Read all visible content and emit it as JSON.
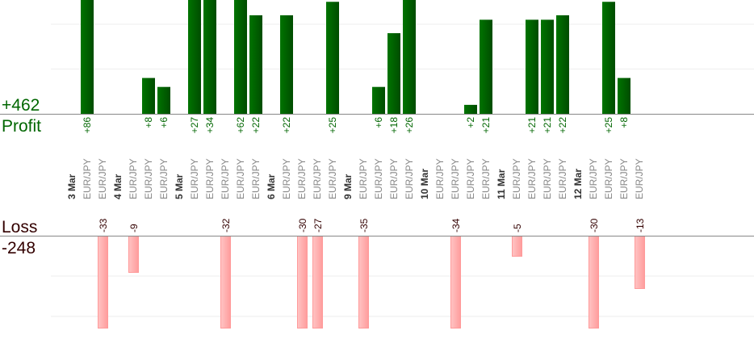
{
  "chart_data": {
    "type": "bar",
    "title": "",
    "profit_total_label": "+462",
    "profit_label": "Profit",
    "loss_label": "Loss",
    "loss_total_label": "-248",
    "colors": {
      "profit": "#006600",
      "profit_bar": "#006a00",
      "loss_text": "#330000",
      "loss_bar": "#ffb0b0",
      "instrument": "#888888",
      "date": "#333333"
    },
    "groups": [
      {
        "date": "3 Mar",
        "trades": [
          {
            "instrument": "EUR/JPY",
            "value": 86
          },
          {
            "instrument": "EUR/JPY",
            "value": -33
          }
        ]
      },
      {
        "date": "4 Mar",
        "trades": [
          {
            "instrument": "EUR/JPY",
            "value": -9
          },
          {
            "instrument": "EUR/JPY",
            "value": 8
          },
          {
            "instrument": "EUR/JPY",
            "value": 6
          }
        ]
      },
      {
        "date": "5 Mar",
        "trades": [
          {
            "instrument": "EUR/JPY",
            "value": 27
          },
          {
            "instrument": "EUR/JPY",
            "value": 34
          },
          {
            "instrument": "EUR/JPY",
            "value": -32
          },
          {
            "instrument": "EUR/JPY",
            "value": 62
          },
          {
            "instrument": "EUR/JPY",
            "value": 22
          }
        ]
      },
      {
        "date": "6 Mar",
        "trades": [
          {
            "instrument": "EUR/JPY",
            "value": 22
          },
          {
            "instrument": "EUR/JPY",
            "value": -30
          },
          {
            "instrument": "EUR/JPY",
            "value": -27
          },
          {
            "instrument": "EUR/JPY",
            "value": 25
          }
        ]
      },
      {
        "date": "9 Mar",
        "trades": [
          {
            "instrument": "EUR/JPY",
            "value": -35
          },
          {
            "instrument": "EUR/JPY",
            "value": 6
          },
          {
            "instrument": "EUR/JPY",
            "value": 18
          },
          {
            "instrument": "EUR/JPY",
            "value": 26
          }
        ]
      },
      {
        "date": "10 Mar",
        "trades": [
          {
            "instrument": "EUR/JPY",
            "value": null
          },
          {
            "instrument": "EUR/JPY",
            "value": -34
          },
          {
            "instrument": "EUR/JPY",
            "value": 2
          },
          {
            "instrument": "EUR/JPY",
            "value": 21
          }
        ]
      },
      {
        "date": "11 Mar",
        "trades": [
          {
            "instrument": "EUR/JPY",
            "value": -5
          },
          {
            "instrument": "EUR/JPY",
            "value": 21
          },
          {
            "instrument": "EUR/JPY",
            "value": 21
          },
          {
            "instrument": "EUR/JPY",
            "value": 22
          }
        ]
      },
      {
        "date": "12 Mar",
        "trades": [
          {
            "instrument": "EUR/JPY",
            "value": -30
          },
          {
            "instrument": "EUR/JPY",
            "value": 25
          },
          {
            "instrument": "EUR/JPY",
            "value": 8
          },
          {
            "instrument": "EUR/JPY",
            "value": -13
          }
        ]
      }
    ],
    "profit_gridlines": [
      10,
      20
    ],
    "loss_gridlines": [
      10,
      20
    ],
    "grid": true
  }
}
